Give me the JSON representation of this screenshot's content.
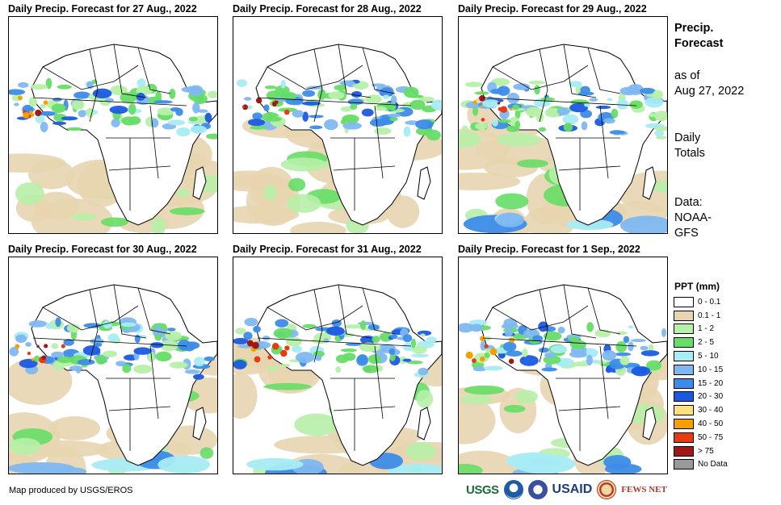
{
  "panels": [
    {
      "title": "Daily Precip. Forecast for 27 Aug., 2022"
    },
    {
      "title": "Daily Precip. Forecast for 28 Aug., 2022"
    },
    {
      "title": "Daily Precip. Forecast for 29 Aug., 2022"
    },
    {
      "title": "Daily Precip. Forecast for 30 Aug., 2022"
    },
    {
      "title": "Daily Precip. Forecast for 31 Aug., 2022"
    },
    {
      "title": "Daily Precip. Forecast for 1 Sep., 2022"
    }
  ],
  "side": {
    "heading_line1": "Precip.",
    "heading_line2": "Forecast",
    "asof_line1": "as of",
    "asof_line2": "Aug 27, 2022",
    "totals_line1": "Daily",
    "totals_line2": "Totals",
    "data_line1": "Data:",
    "data_line2": "NOAA-",
    "data_line3": "GFS"
  },
  "legend": {
    "title": "PPT (mm)",
    "items": [
      {
        "label": "0 - 0.1",
        "color": "#ffffff"
      },
      {
        "label": "0.1 - 1",
        "color": "#e8d5b0"
      },
      {
        "label": "1 - 2",
        "color": "#b7f0a8"
      },
      {
        "label": "2 - 5",
        "color": "#66dd66"
      },
      {
        "label": "5 - 10",
        "color": "#a8ecf4"
      },
      {
        "label": "10 - 15",
        "color": "#7fb8f0"
      },
      {
        "label": "15 - 20",
        "color": "#3d8ce8"
      },
      {
        "label": "20 - 30",
        "color": "#1a5ae0"
      },
      {
        "label": "30 - 40",
        "color": "#fde17a"
      },
      {
        "label": "40 - 50",
        "color": "#f5a000"
      },
      {
        "label": "50 - 75",
        "color": "#e83a10"
      },
      {
        "label": "> 75",
        "color": "#a01818"
      },
      {
        "label": "No Data",
        "color": "#999999"
      }
    ]
  },
  "footer": {
    "credit": "Map produced by USGS/EROS"
  },
  "logos": {
    "usgs": "USGS",
    "usaid": "USAID",
    "fews": "FEWS NET"
  }
}
